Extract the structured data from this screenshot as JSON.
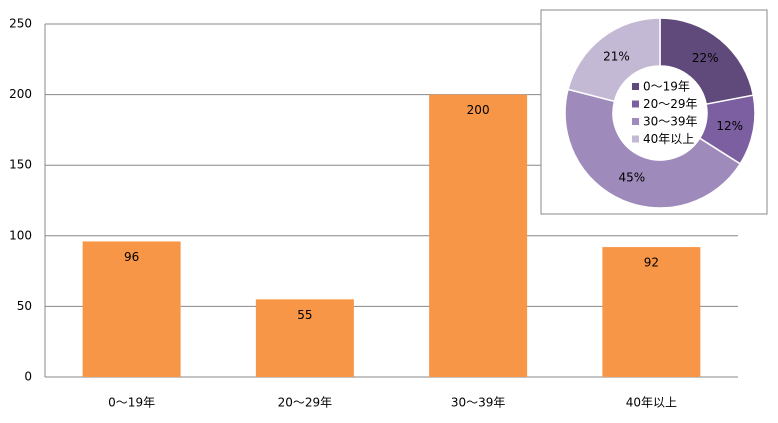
{
  "chart_data": [
    {
      "type": "bar",
      "categories": [
        "0～19年",
        "20～29年",
        "30～39年",
        "40年以上"
      ],
      "values": [
        96,
        55,
        200,
        92
      ],
      "color": "#f79646",
      "ylim": [
        0,
        250
      ],
      "yticks": [
        0,
        50,
        100,
        150,
        200,
        250
      ],
      "grid": true
    },
    {
      "type": "donut",
      "categories": [
        "0～19年",
        "20～29年",
        "30～39年",
        "40年以上"
      ],
      "values": [
        22,
        12,
        45,
        21
      ],
      "value_labels": [
        "22%",
        "12%",
        "45%",
        "21%"
      ],
      "colors": [
        "#604a7b",
        "#7b5fa0",
        "#9e8bbb",
        "#c4b9d5"
      ],
      "legend": "center"
    }
  ]
}
